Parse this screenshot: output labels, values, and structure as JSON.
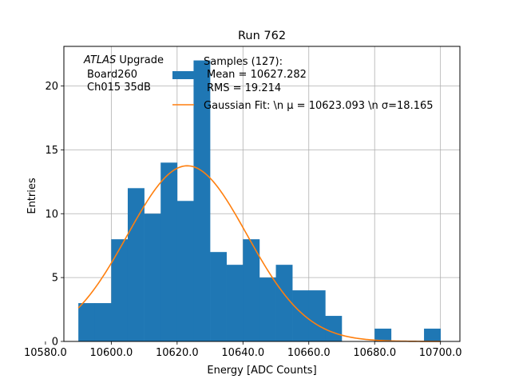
{
  "chart_data": {
    "type": "bar",
    "title": "Run 762",
    "xlabel": "Energy [ADC Counts]",
    "ylabel": "Entries",
    "xlim": [
      10585.6,
      10705.9
    ],
    "ylim": [
      0,
      23.1
    ],
    "grid": true,
    "x_ticks": [
      10580,
      10600,
      10620,
      10640,
      10660,
      10680,
      10700
    ],
    "x_tick_labels": [
      "10580.0",
      "10600.0",
      "10620.0",
      "10640.0",
      "10660.0",
      "10680.0",
      "10700.0"
    ],
    "y_ticks": [
      0,
      5,
      10,
      15,
      20
    ],
    "y_tick_labels": [
      "0",
      "5",
      "10",
      "15",
      "20"
    ],
    "bin_edges": [
      10590,
      10595,
      10600,
      10605,
      10610,
      10615,
      10620,
      10625,
      10630,
      10635,
      10640,
      10645,
      10650,
      10655,
      10660,
      10665,
      10670,
      10675,
      10680,
      10685,
      10690,
      10695,
      10700
    ],
    "counts": [
      3,
      3,
      8,
      12,
      10,
      14,
      11,
      22,
      7,
      6,
      8,
      5,
      6,
      4,
      4,
      2,
      0,
      0,
      1,
      0,
      0,
      1
    ],
    "hist_color": "#1f77b4",
    "fit": {
      "mu": 10623.093,
      "sigma": 18.165,
      "peak": 13.75,
      "x_range": [
        10590,
        10700
      ],
      "color": "#ff7f0e"
    },
    "annotation": {
      "line1_italic": "ATLAS",
      "line1_rest": " Upgrade",
      "line2": "Board260",
      "line3": "Ch015 35dB"
    },
    "legend": {
      "placement": "top-right",
      "samples_line1": "Samples (127):",
      "samples_line2": "Mean = 10627.282",
      "samples_line3": "RMS = 19.214",
      "fit_prefix": "Gaussian Fit: \\n μ = 10623.093 \\n σ=18.165"
    }
  }
}
